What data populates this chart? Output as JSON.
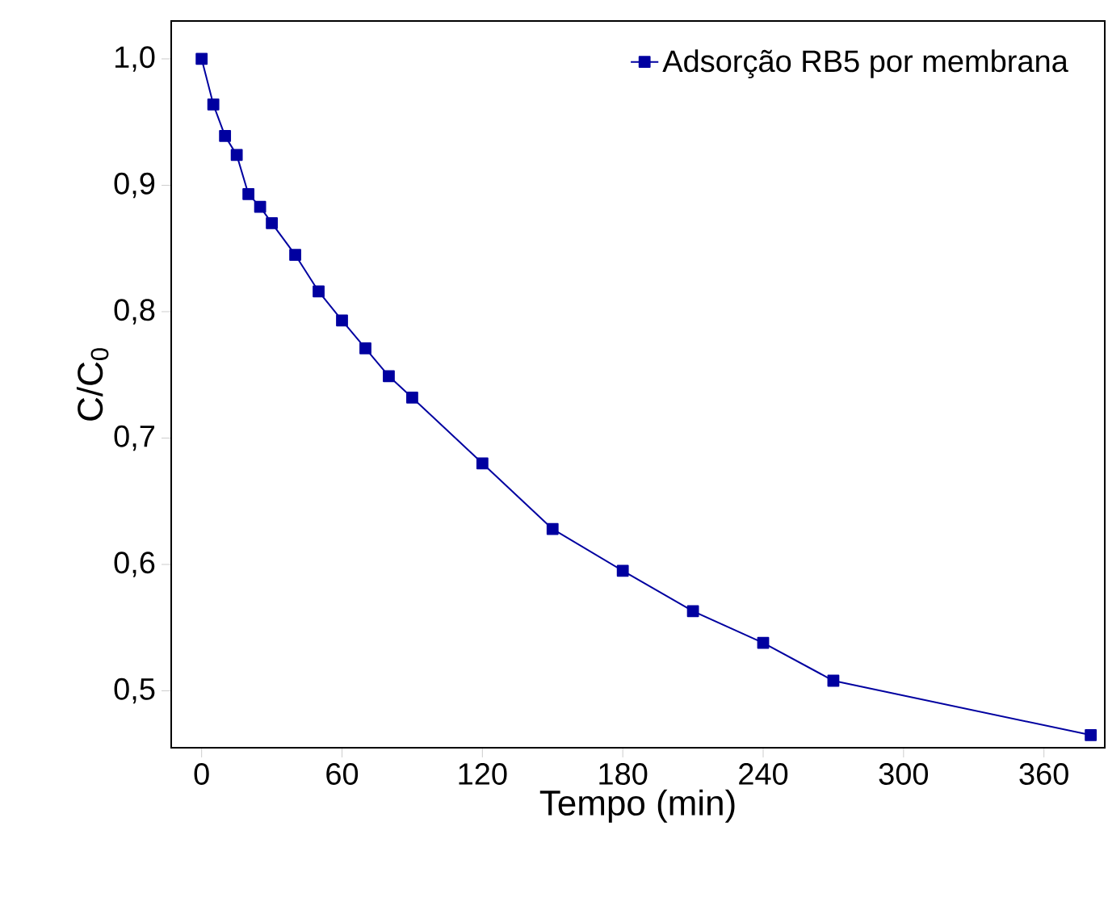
{
  "chart_data": {
    "type": "line",
    "xlabel": "Tempo (min)",
    "ylabel": "C/C$_{0}$",
    "xlim": [
      -13,
      386
    ],
    "ylim": [
      0.455,
      1.03
    ],
    "xticks": [
      0,
      60,
      120,
      180,
      240,
      300,
      360
    ],
    "yticks": [
      {
        "value": 0.5,
        "label": "0,5"
      },
      {
        "value": 0.6,
        "label": "0,6"
      },
      {
        "value": 0.7,
        "label": "0,7"
      },
      {
        "value": 0.8,
        "label": "0,8"
      },
      {
        "value": 0.9,
        "label": "0,9"
      },
      {
        "value": 1.0,
        "label": "1,0"
      }
    ],
    "grid": false,
    "legend": "top right",
    "marker": "square",
    "line_style": "solid",
    "series": [
      {
        "name": "Adsorção RB5 por membrana",
        "color": "#0000a0",
        "x": [
          0,
          5,
          10,
          15,
          20,
          25,
          30,
          40,
          50,
          60,
          70,
          80,
          90,
          120,
          150,
          180,
          210,
          240,
          270,
          380
        ],
        "values": [
          1.0,
          0.964,
          0.939,
          0.924,
          0.893,
          0.883,
          0.87,
          0.845,
          0.816,
          0.793,
          0.771,
          0.749,
          0.732,
          0.68,
          0.628,
          0.595,
          0.563,
          0.538,
          0.508,
          0.465
        ]
      }
    ]
  }
}
